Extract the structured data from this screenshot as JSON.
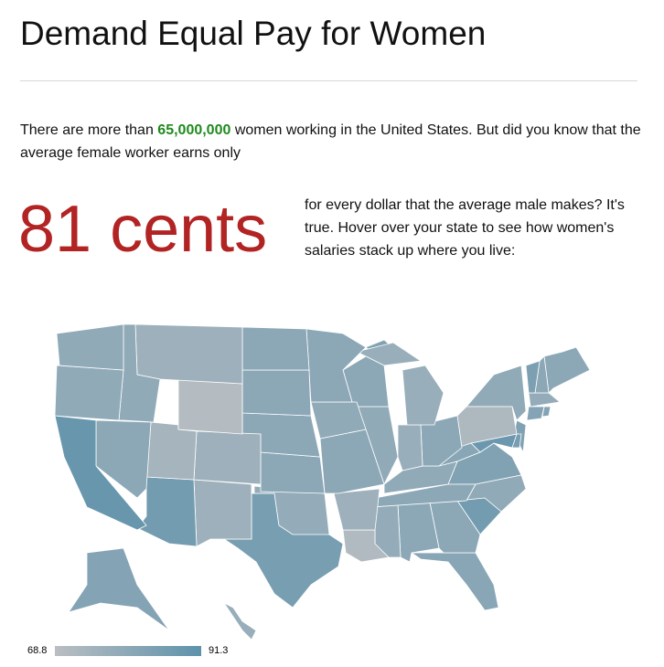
{
  "header": {
    "title": "Demand Equal Pay for Women"
  },
  "intro": {
    "before": "There are more than ",
    "highlight": "65,000,000",
    "after": " women working in the United States. But did you know that the average female worker earns only"
  },
  "callout": {
    "figure": "81 cents",
    "text": "for every dollar that the average male makes? It's true. Hover over your state to see how women's salaries stack up where you live:"
  },
  "map": {
    "values": [
      79,
      79,
      89,
      80,
      79,
      76,
      70,
      74,
      86,
      76,
      76,
      80,
      80,
      80,
      80,
      78,
      85,
      80,
      79,
      80,
      76,
      71,
      80,
      79,
      77,
      77,
      77,
      80,
      79,
      80,
      78,
      80,
      80,
      81,
      86,
      79,
      83,
      81,
      72,
      79,
      88,
      85,
      83,
      84,
      80,
      80,
      78,
      82,
      82,
      82,
      77,
      83
    ],
    "scale_min": 68.8,
    "scale_max": 91.3,
    "colors": [
      "#babec2",
      "#5e92ab"
    ]
  }
}
